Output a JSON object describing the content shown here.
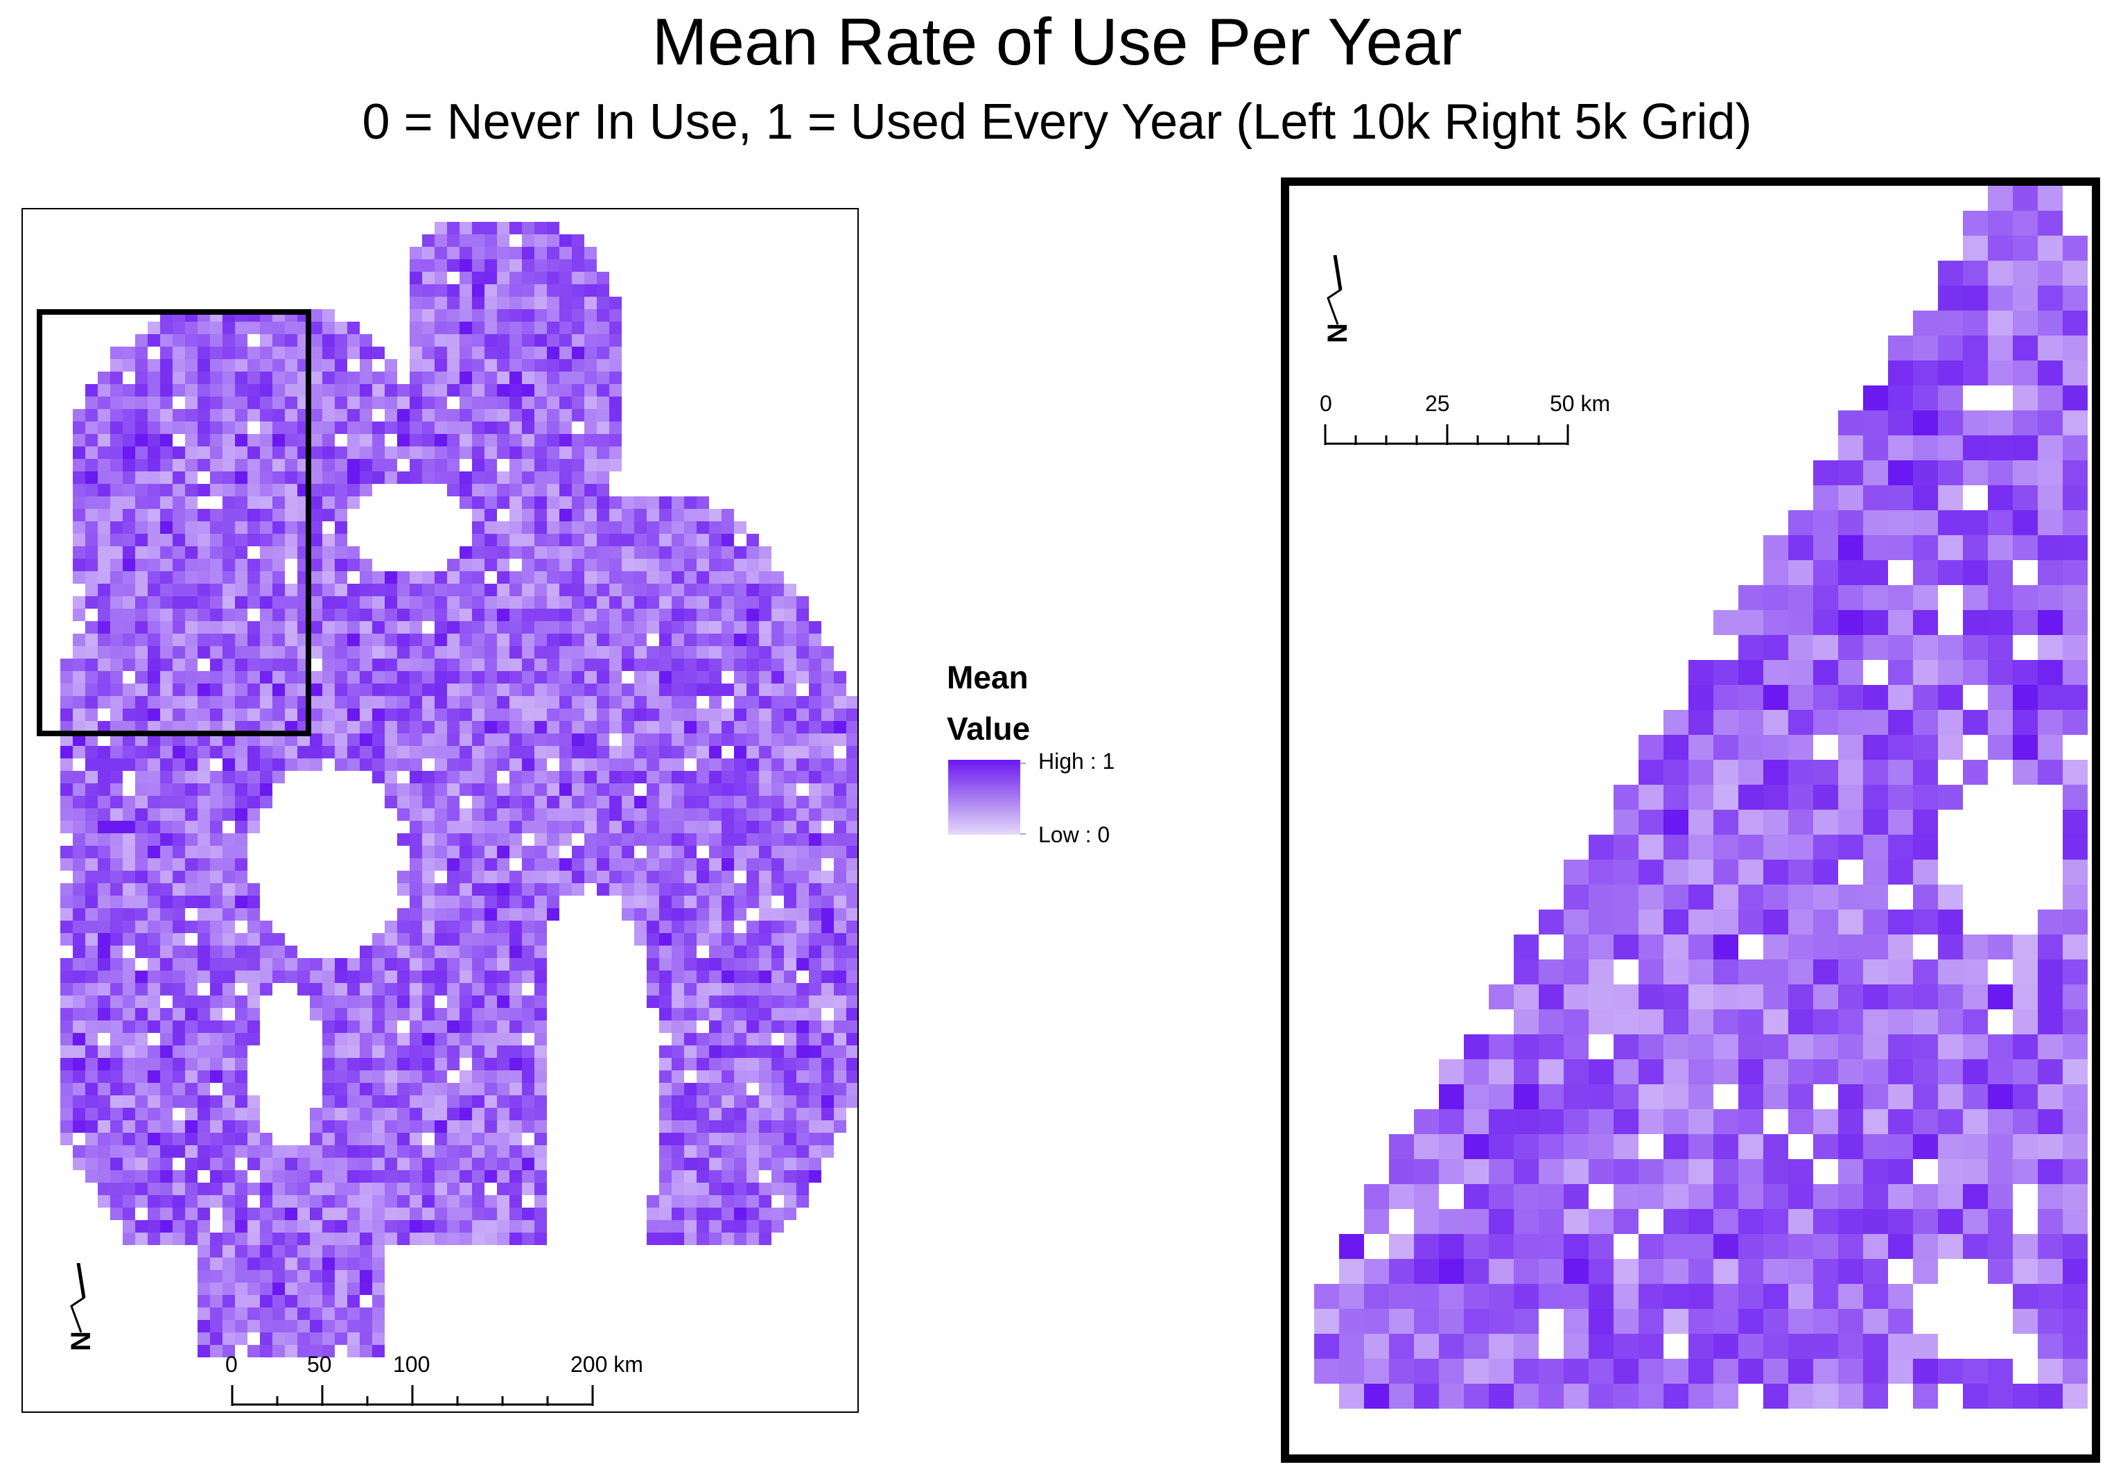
{
  "title": "Mean Rate of Use Per Year",
  "subtitle": "0 = Never In Use, 1 = Used Every Year (Left 10k Right 5k Grid)",
  "legend": {
    "heading_line1": "Mean",
    "heading_line2": "Value",
    "high_label": "High : 1",
    "low_label": "Low : 0",
    "high_color": "#6a19f0",
    "low_color": "#e6d9fb"
  },
  "left_map": {
    "grid": "10k",
    "north_label": "N",
    "scale_labels": [
      "0",
      "50",
      "100",
      "200 km"
    ]
  },
  "right_map": {
    "grid": "5k",
    "north_label": "N",
    "scale_labels": [
      "0",
      "25",
      "50 km"
    ]
  },
  "colors": {
    "cell_dark": "#6a19f0",
    "cell_mid": "#9c6bec",
    "cell_light": "#e3d3fa",
    "frame": "#000000"
  }
}
